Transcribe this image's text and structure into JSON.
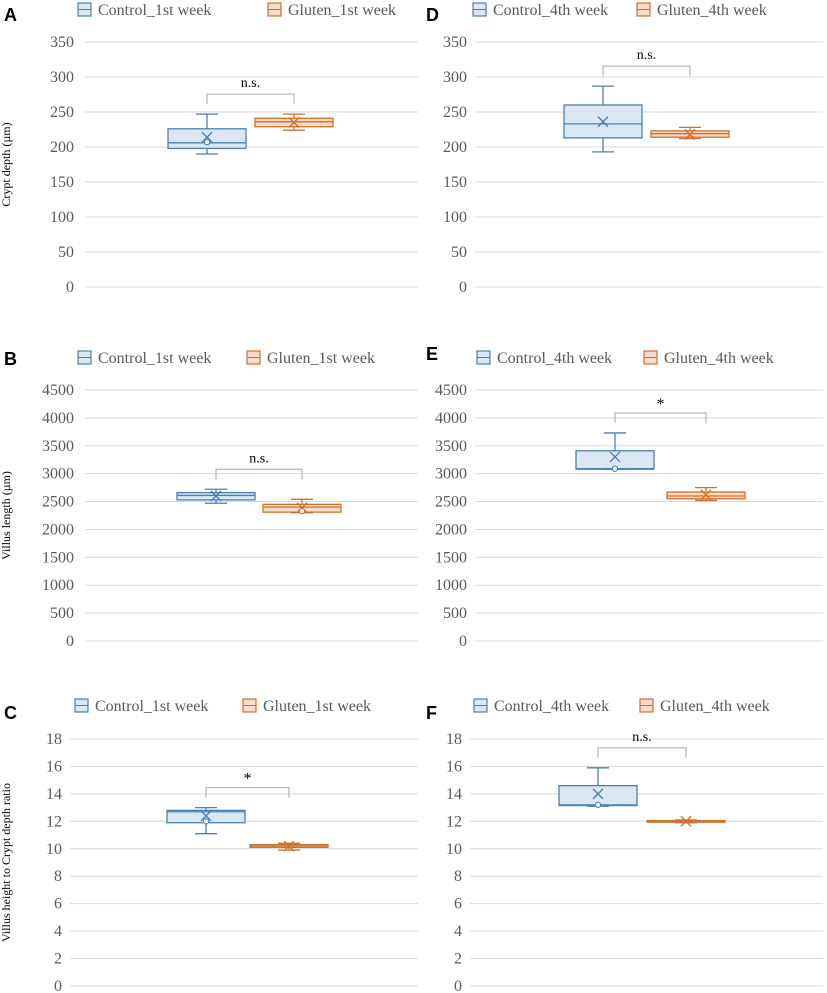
{
  "colors": {
    "control_stroke": "#4a7fb8",
    "control_fill": "#dbe8f4",
    "gluten_stroke": "#d0702e",
    "gluten_fill": "#f9dcc8",
    "grid": "#d9d9d9",
    "axis_text": "#595959",
    "bracket": "#a6a6a6"
  },
  "chart_data": [
    {
      "type": "box",
      "panel": "A",
      "ylabel": "Crypt depth (µm)",
      "ylim": [
        0,
        350
      ],
      "yticks": [
        "0",
        "50",
        "100",
        "150",
        "200",
        "250",
        "300",
        "350"
      ],
      "legend": [
        "Control_1st week",
        "Gluten_1st week"
      ],
      "significance": "n.s.",
      "series": [
        {
          "name": "Control_1st week",
          "min": 190,
          "q1": 198,
          "median": 206,
          "q3": 226,
          "max": 247,
          "mean": 214,
          "outlier": 207
        },
        {
          "name": "Gluten_1st week",
          "min": 224,
          "q1": 229,
          "median": 236,
          "q3": 241,
          "max": 247,
          "mean": 235
        }
      ]
    },
    {
      "type": "box",
      "panel": "D",
      "ylabel": "",
      "ylim": [
        0,
        350
      ],
      "yticks": [
        "0",
        "50",
        "100",
        "150",
        "200",
        "250",
        "300",
        "350"
      ],
      "legend": [
        "Control_4th week",
        "Gluten_4th week"
      ],
      "significance": "n.s.",
      "series": [
        {
          "name": "Control_4th week",
          "min": 193,
          "q1": 213,
          "median": 233,
          "q3": 260,
          "max": 287,
          "mean": 236
        },
        {
          "name": "Gluten_4th week",
          "min": 212,
          "q1": 214,
          "median": 219,
          "q3": 223,
          "max": 228,
          "mean": 218
        }
      ]
    },
    {
      "type": "box",
      "panel": "B",
      "ylabel": "Villus length (µm)",
      "ylim": [
        0,
        4500
      ],
      "yticks": [
        "0",
        "500",
        "1000",
        "1500",
        "2000",
        "2500",
        "3000",
        "3500",
        "4000",
        "4500"
      ],
      "legend": [
        "Control_1st week",
        "Gluten_1st week"
      ],
      "significance": "n.s.",
      "series": [
        {
          "name": "Control_1st week",
          "min": 2470,
          "q1": 2530,
          "median": 2610,
          "q3": 2660,
          "max": 2720,
          "mean": 2600
        },
        {
          "name": "Gluten_1st week",
          "min": 2300,
          "q1": 2310,
          "median": 2400,
          "q3": 2450,
          "max": 2540,
          "mean": 2390,
          "outlier": 2330
        }
      ]
    },
    {
      "type": "box",
      "panel": "E",
      "ylabel": "",
      "ylim": [
        0,
        4500
      ],
      "yticks": [
        "0",
        "500",
        "1000",
        "1500",
        "2000",
        "2500",
        "3000",
        "3500",
        "4000",
        "4500"
      ],
      "legend": [
        "Control_4th week",
        "Gluten_4th week"
      ],
      "significance": "*",
      "series": [
        {
          "name": "Control_4th week",
          "min": 3080,
          "q1": 3080,
          "median": 3090,
          "q3": 3410,
          "max": 3730,
          "mean": 3300,
          "outlier": 3090
        },
        {
          "name": "Gluten_4th week",
          "min": 2520,
          "q1": 2550,
          "median": 2600,
          "q3": 2670,
          "max": 2750,
          "mean": 2620
        }
      ]
    },
    {
      "type": "box",
      "panel": "C",
      "ylabel": "Villus height to Crypt depth ratio",
      "ylim": [
        0,
        18
      ],
      "yticks": [
        "0",
        "2",
        "4",
        "6",
        "8",
        "10",
        "12",
        "14",
        "16",
        "18"
      ],
      "legend": [
        "Control_1st week",
        "Gluten_1st week"
      ],
      "significance": "*",
      "series": [
        {
          "name": "Control_1st week",
          "min": 11.1,
          "q1": 11.9,
          "median": 12.7,
          "q3": 12.8,
          "max": 13.0,
          "mean": 12.4,
          "outlier": 12.0
        },
        {
          "name": "Gluten_1st week",
          "min": 9.9,
          "q1": 10.1,
          "median": 10.2,
          "q3": 10.3,
          "max": 10.4,
          "mean": 10.2
        }
      ]
    },
    {
      "type": "box",
      "panel": "F",
      "ylabel": "",
      "ylim": [
        0,
        18
      ],
      "yticks": [
        "0",
        "2",
        "4",
        "6",
        "8",
        "10",
        "12",
        "14",
        "16",
        "18"
      ],
      "legend": [
        "Control_4th week",
        "Gluten_4th week"
      ],
      "significance": "n.s.",
      "series": [
        {
          "name": "Control_4th week",
          "min": 13.1,
          "q1": 13.15,
          "median": 13.2,
          "q3": 14.6,
          "max": 15.9,
          "mean": 14.0,
          "outlier": 13.2
        },
        {
          "name": "Gluten_4th week",
          "min": 11.9,
          "q1": 11.95,
          "median": 12.0,
          "q3": 12.05,
          "max": 12.1,
          "mean": 12.0
        }
      ]
    }
  ]
}
